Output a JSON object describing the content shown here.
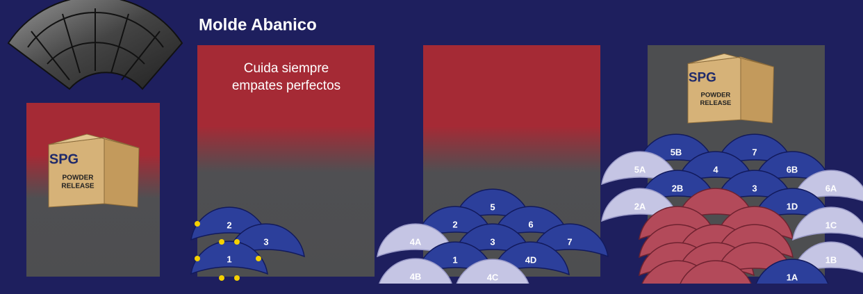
{
  "header": {
    "title": "Molde Abanico"
  },
  "panel_text": {
    "lines": [
      "Cuida siempre",
      "empates perfectos"
    ]
  },
  "product_boxes": [
    {
      "brand": "SPG",
      "label_lines": [
        "POWDER",
        "RELEASE"
      ]
    },
    {
      "brand": "SPG",
      "label_lines": [
        "POWDER",
        "RELEASE"
      ]
    }
  ],
  "diagrams": [
    {
      "pieces": [
        "2",
        "3",
        "1"
      ]
    },
    {
      "pieces": [
        "5",
        "2",
        "6",
        "4A",
        "3",
        "7",
        "1",
        "4D",
        "4B",
        "4C"
      ]
    },
    {
      "pieces": [
        "5B",
        "7",
        "5A",
        "4",
        "6B",
        "2B",
        "3",
        "6A",
        "2A",
        "1D",
        "1C",
        "1B",
        "1A"
      ]
    }
  ]
}
